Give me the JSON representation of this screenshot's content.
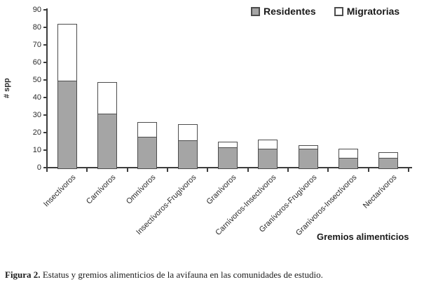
{
  "figure": {
    "caption_label": "Figura 2.",
    "caption_text": " Estatus y gremios alimenticios de la avifauna en las comunidades de estudio."
  },
  "chart_data": {
    "type": "bar",
    "stacked": true,
    "title": "",
    "xlabel": "Gremios alimenticios",
    "ylabel": "# spp",
    "ylim": [
      0,
      90
    ],
    "ytick_step": 10,
    "ytick_labels": [
      "0",
      "10",
      "20",
      "30",
      "40",
      "50",
      "60",
      "70",
      "80",
      "90"
    ],
    "grid": false,
    "legend_position": "top-right",
    "bar_border_color": "#4d4d4d",
    "categories": [
      "Insectívoros",
      "Carnívoros",
      "Omnívoros",
      "Insectívoros-Frugívoros",
      "Granívoros",
      "Carnívoros-Insectívoros",
      "Granívoros-Frugívoros",
      "Granívoros-Insectívoros",
      "Nectarívoros"
    ],
    "series": [
      {
        "name": "Residentes",
        "color": "#a5a5a5",
        "values": [
          50,
          31,
          18,
          16,
          12,
          11,
          11,
          6,
          6
        ]
      },
      {
        "name": "Migratorias",
        "color": "#ffffff",
        "values": [
          32,
          18,
          8,
          9,
          3,
          5,
          2,
          5,
          3
        ]
      }
    ],
    "totals": [
      82,
      49,
      26,
      25,
      15,
      16,
      13,
      11,
      9
    ]
  }
}
